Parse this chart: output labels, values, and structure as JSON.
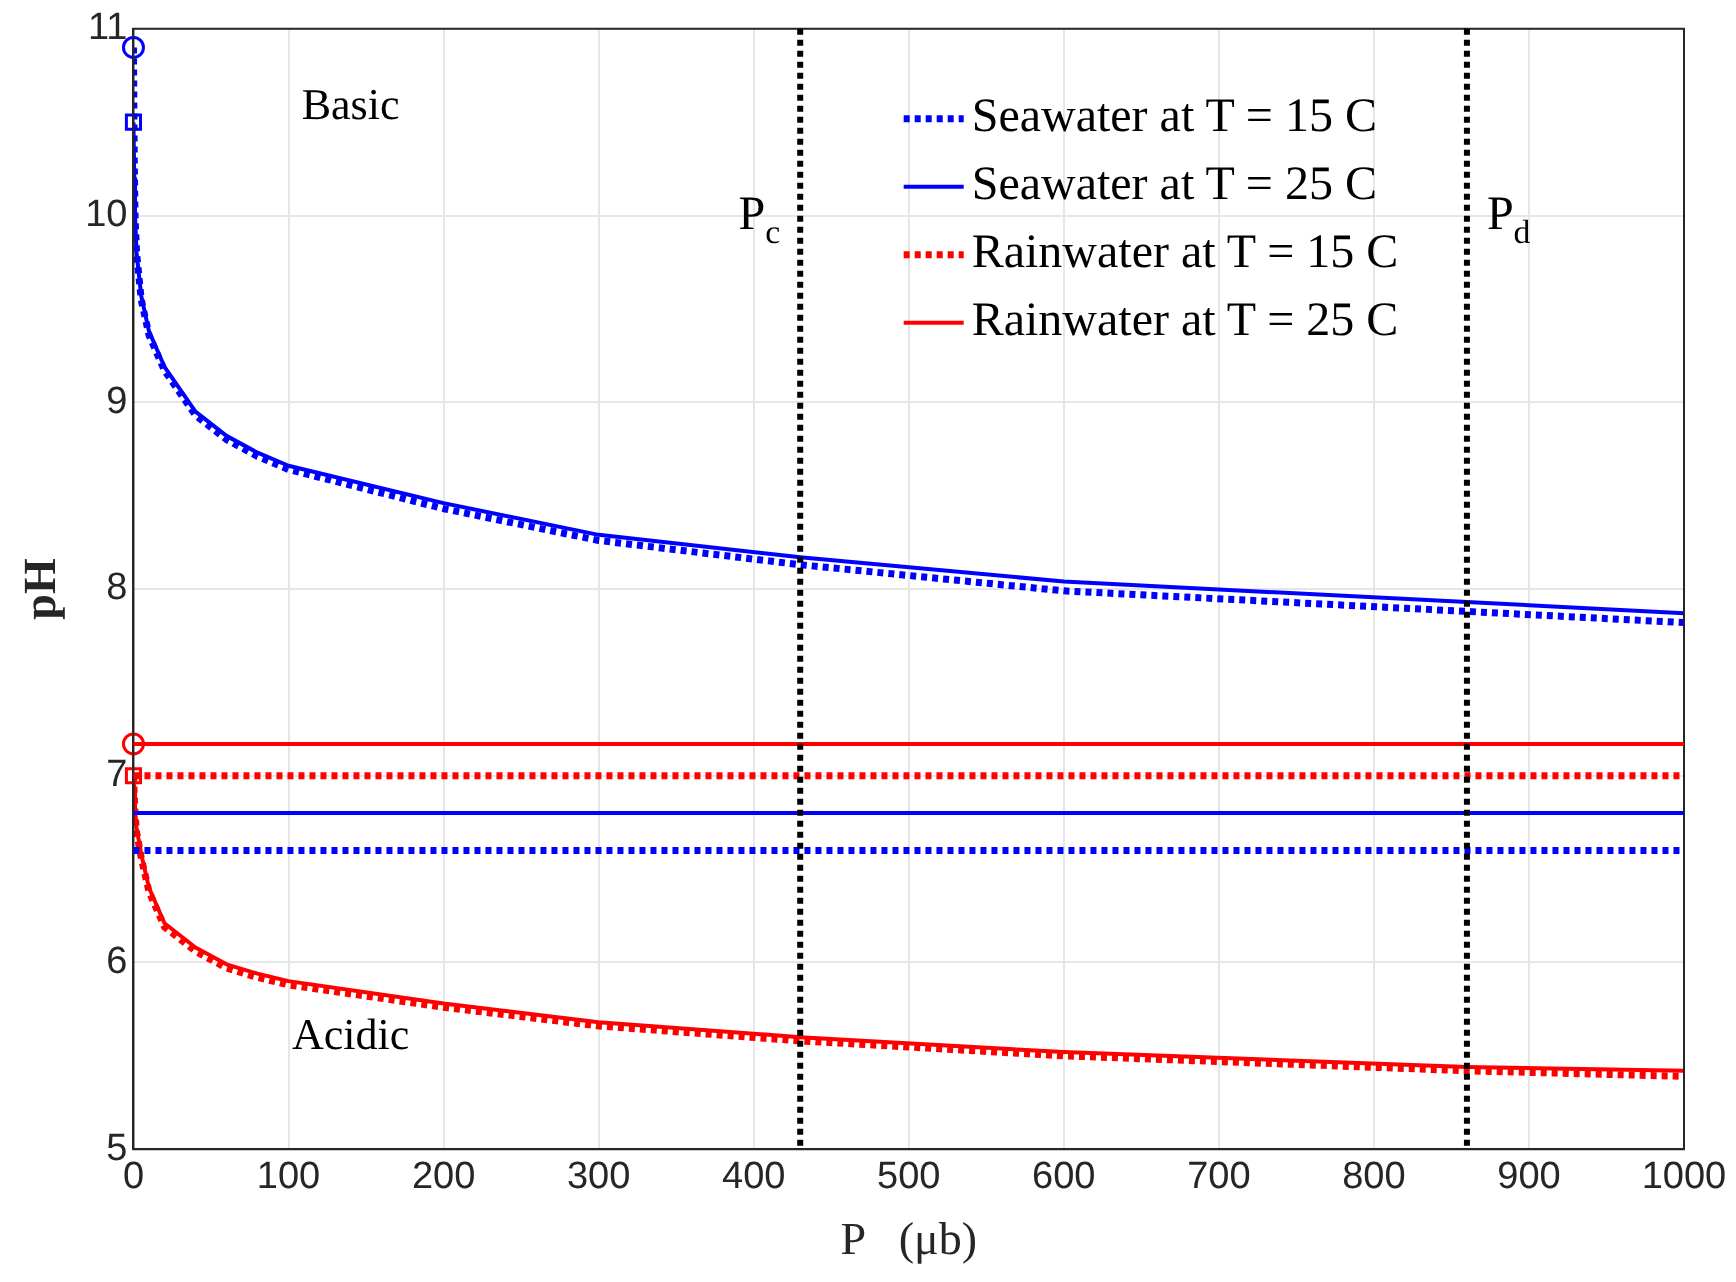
{
  "chart_data": {
    "type": "line",
    "xlabel": "P   (μb)",
    "ylabel": "pH",
    "xlim": [
      0,
      1000
    ],
    "ylim": [
      5,
      11
    ],
    "xticks": [
      0,
      100,
      200,
      300,
      400,
      500,
      600,
      700,
      800,
      900,
      1000
    ],
    "yticks": [
      5,
      6,
      7,
      8,
      9,
      10,
      11
    ],
    "grid": true,
    "legend": "top right",
    "marker": "none",
    "x": [
      0,
      0.5,
      1,
      2,
      5,
      10,
      20,
      40,
      60,
      80,
      100,
      200,
      300,
      430,
      600,
      860,
      1000
    ],
    "series": [
      {
        "name": "Seawater at T = 15 C",
        "color": "#0000ff",
        "line_style": "dotted",
        "values": [
          10.9,
          10.3,
          10.0,
          9.8,
          9.55,
          9.36,
          9.17,
          8.93,
          8.8,
          8.71,
          8.64,
          8.43,
          8.26,
          8.13,
          7.99,
          7.88,
          7.82
        ]
      },
      {
        "name": "Seawater at T = 25 C",
        "color": "#0000ff",
        "line_style": "solid",
        "values": [
          10.5,
          10.2,
          10.0,
          9.8,
          9.57,
          9.38,
          9.19,
          8.95,
          8.82,
          8.73,
          8.66,
          8.46,
          8.29,
          8.17,
          8.04,
          7.93,
          7.87
        ]
      },
      {
        "name": "Rainwater at T = 15 C",
        "color": "#ff0000",
        "line_style": "dotted",
        "values": [
          7.0,
          6.9,
          6.8,
          6.7,
          6.56,
          6.38,
          6.19,
          6.06,
          5.97,
          5.92,
          5.88,
          5.76,
          5.66,
          5.58,
          5.5,
          5.42,
          5.39
        ]
      },
      {
        "name": "Rainwater at T = 25 C",
        "color": "#ff0000",
        "line_style": "solid",
        "values": [
          7.0,
          6.92,
          6.82,
          6.72,
          6.58,
          6.4,
          6.21,
          6.08,
          5.99,
          5.94,
          5.9,
          5.78,
          5.68,
          5.6,
          5.52,
          5.44,
          5.42
        ]
      },
      {
        "type": "scatter",
        "marker": "circle",
        "color": "#0000ff",
        "values": [
          10.9,
          null,
          null,
          null,
          null,
          null,
          null,
          null,
          null,
          null,
          null,
          null,
          null,
          null,
          null,
          null,
          null
        ]
      },
      {
        "type": "scatter",
        "marker": "square",
        "color": "#0000ff",
        "values": [
          10.5,
          null,
          null,
          null,
          null,
          null,
          null,
          null,
          null,
          null,
          null,
          null,
          null,
          null,
          null,
          null,
          null
        ]
      },
      {
        "type": "scatter",
        "marker": "circle",
        "color": "#ff0000",
        "values": [
          7.17,
          null,
          null,
          null,
          null,
          null,
          null,
          null,
          null,
          null,
          null,
          null,
          null,
          null,
          null,
          null,
          null
        ]
      },
      {
        "type": "scatter",
        "marker": "square",
        "color": "#ff0000",
        "values": [
          7.0,
          null,
          null,
          null,
          null,
          null,
          null,
          null,
          null,
          null,
          null,
          null,
          null,
          null,
          null,
          null,
          null
        ]
      }
    ],
    "ref_lines": [
      {
        "axis": "y",
        "value": 7.17,
        "color": "#ff0000",
        "line_style": "solid"
      },
      {
        "axis": "y",
        "value": 7.0,
        "color": "#ff0000",
        "line_style": "dotted"
      },
      {
        "axis": "y",
        "value": 6.8,
        "color": "#0000ff",
        "line_style": "solid"
      },
      {
        "axis": "y",
        "value": 6.6,
        "color": "#0000ff",
        "line_style": "dotted"
      },
      {
        "axis": "x",
        "value": 430,
        "label": "P$_{c}$",
        "color": "#000000",
        "line_style": "dotted"
      },
      {
        "axis": "x",
        "value": 860,
        "label": "P$_{d}$",
        "color": "#000000",
        "line_style": "dotted"
      }
    ],
    "annotations": [
      "Basic",
      "Acidic"
    ]
  }
}
